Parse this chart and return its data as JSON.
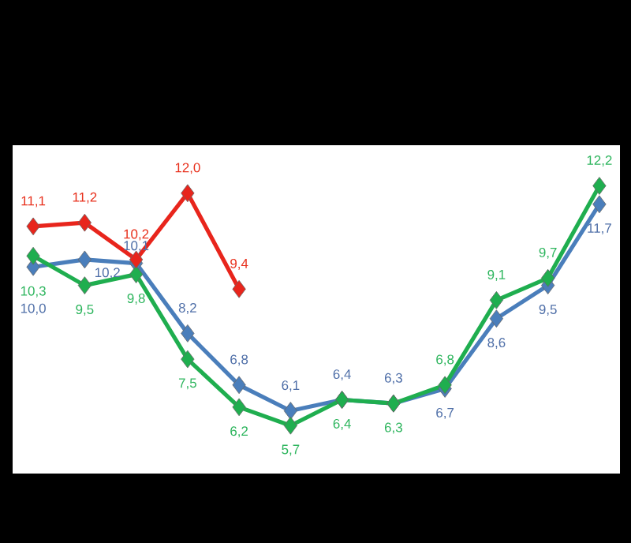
{
  "chart_data": {
    "type": "line",
    "categories": [
      null,
      null,
      null,
      null,
      null,
      null,
      null,
      null,
      null,
      null,
      null,
      null
    ],
    "series": [
      {
        "color": "#4a7ebb",
        "values": [
          10.0,
          10.2,
          10.1,
          8.2,
          6.8,
          6.1,
          6.4,
          6.3,
          6.7,
          8.6,
          9.5,
          11.7
        ],
        "value_labels": [
          "10,0",
          "10,2",
          "10,1",
          "8,2",
          "6,8",
          "6,1",
          "6,4",
          "6,3",
          "6,7",
          "8,6",
          "9,5",
          "11,7"
        ]
      },
      {
        "color": "#1fae4f",
        "values": [
          10.3,
          9.5,
          9.8,
          7.5,
          6.2,
          5.7,
          6.4,
          6.3,
          6.8,
          9.1,
          9.7,
          12.2
        ],
        "value_labels": [
          "10,3",
          "9,5",
          "9,8",
          "7,5",
          "6,2",
          "5,7",
          "6,4",
          "6,3",
          "6,8",
          "9,1",
          "9,7",
          "12,2"
        ]
      },
      {
        "color": "#e8251c",
        "values": [
          11.1,
          11.2,
          10.2,
          12.0,
          9.4,
          null,
          null,
          null,
          null,
          null,
          null,
          null
        ],
        "value_labels": [
          "11,1",
          "11,2",
          "10,2",
          "12,0",
          "9,4",
          null,
          null,
          null,
          null,
          null,
          null,
          null
        ]
      }
    ],
    "ylim": [
      4.4,
      13.3
    ],
    "marker": "diamond",
    "line_style": "solid"
  }
}
